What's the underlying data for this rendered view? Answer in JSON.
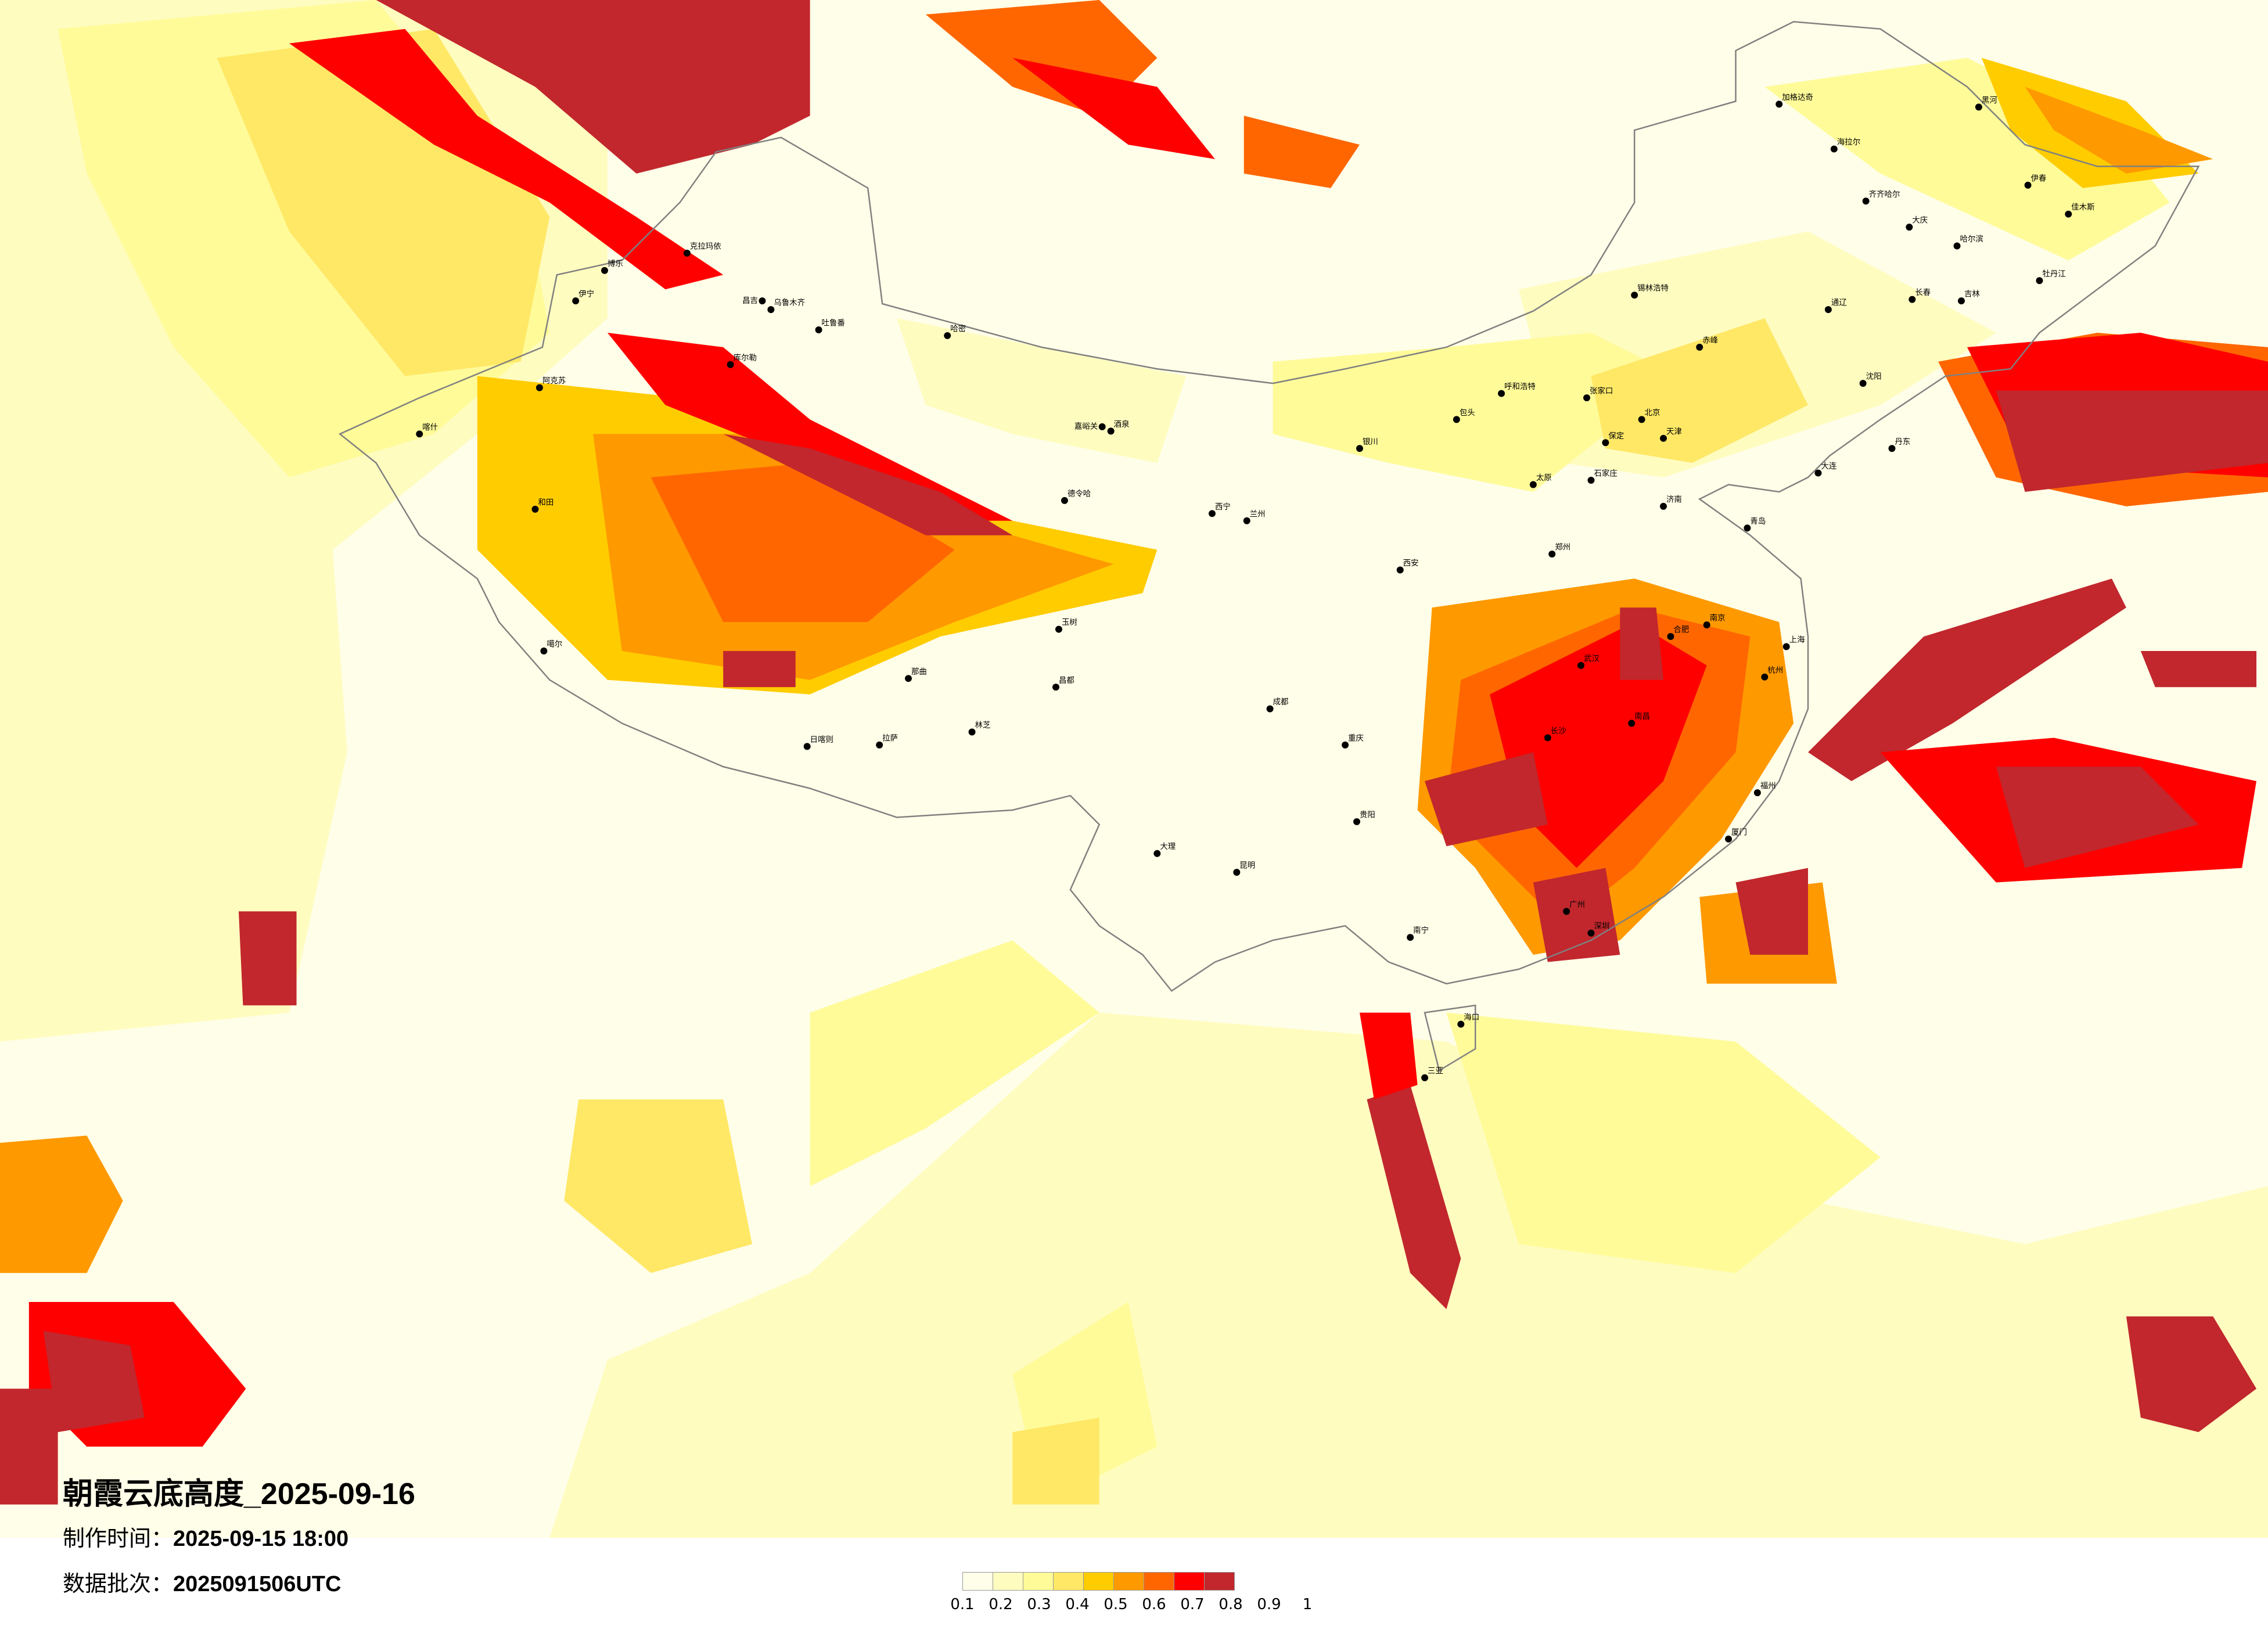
{
  "title": "朝霞云底高度_2025-09-16",
  "production_time": {
    "label": "制作时间：",
    "value": "2025-09-15 18:00"
  },
  "data_batch": {
    "label": "数据批次：",
    "value": "2025091506UTC"
  },
  "legend": {
    "labels": [
      "0.1",
      "0.2",
      "0.3",
      "0.4",
      "0.5",
      "0.6",
      "0.7",
      "0.8",
      "0.9",
      "1"
    ],
    "colors": [
      "#fffee8",
      "#fffcc0",
      "#fffb99",
      "#ffe866",
      "#ffcc00",
      "#ff9900",
      "#ff6600",
      "#ff0000",
      "#c1272d"
    ]
  },
  "boundary_color": "#808080",
  "cities": [
    "克拉玛依",
    "博乐",
    "伊宁",
    "昌吉",
    "乌鲁木齐",
    "吐鲁番",
    "哈密",
    "库尔勒",
    "阿克苏",
    "喀什",
    "和田",
    "噶尔",
    "嘉峪关",
    "酒泉",
    "德令哈",
    "玉树",
    "那曲",
    "昌都",
    "拉萨",
    "日喀则",
    "林芝",
    "海拉尔",
    "加格达奇",
    "黑河",
    "齐齐哈尔",
    "大庆",
    "哈尔滨",
    "伊春",
    "佳木斯",
    "牡丹江",
    "长春",
    "吉林",
    "锡林浩特",
    "通辽",
    "沈阳",
    "大连",
    "丹东",
    "赤峰",
    "张家口",
    "北京",
    "天津",
    "保定",
    "石家庄",
    "太原",
    "呼和浩特",
    "包头",
    "银川",
    "兰州",
    "西宁",
    "西安",
    "郑州",
    "济南",
    "青岛",
    "南京",
    "上海",
    "杭州",
    "合肥",
    "武汉",
    "长沙",
    "南昌",
    "福州",
    "厦门",
    "广州",
    "深圳",
    "南宁",
    "海口",
    "三亚",
    "贵阳",
    "昆明",
    "成都",
    "重庆",
    "大理"
  ]
}
